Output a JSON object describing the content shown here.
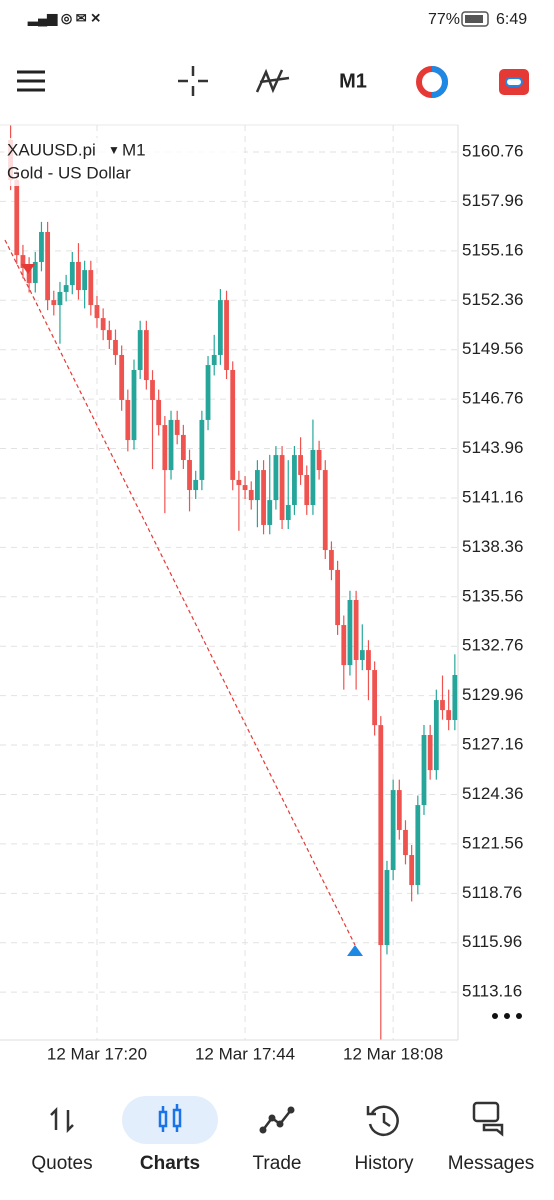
{
  "status_bar": {
    "battery": "77%",
    "time": "6:49"
  },
  "toolbar": {
    "timeframe": "M1"
  },
  "chart_data": {
    "type": "candlestick",
    "symbol": "XAUUSD.pi",
    "timeframe": "M1",
    "description": "Gold - US Dollar",
    "categories": [
      null,
      null,
      null,
      null,
      null,
      null,
      null,
      null,
      null,
      null,
      null,
      null,
      null,
      null,
      "12 Mar 17:20",
      null,
      null,
      null,
      null,
      null,
      null,
      null,
      null,
      null,
      null,
      null,
      null,
      null,
      null,
      null,
      null,
      null,
      null,
      null,
      null,
      null,
      null,
      null,
      "12 Mar 17:44",
      null,
      null,
      null,
      null,
      null,
      null,
      null,
      null,
      null,
      null,
      null,
      null,
      null,
      null,
      null,
      null,
      null,
      null,
      null,
      null,
      null,
      null,
      null,
      "12 Mar 18:08",
      null,
      null,
      null,
      null,
      null,
      null,
      null,
      null,
      null,
      null
    ],
    "open": [
      5161.44,
      5159.17,
      5154.92,
      5154.19,
      5153.34,
      5154.53,
      5156.23,
      5152.37,
      5152.09,
      5152.83,
      5153.22,
      5154.53,
      5152.94,
      5154.07,
      5152.09,
      5151.35,
      5150.67,
      5150.11,
      5149.26,
      5146.71,
      5144.44,
      5148.41,
      5150.67,
      5147.84,
      5146.71,
      5145.29,
      5142.74,
      5145.58,
      5144.73,
      5143.31,
      5141.61,
      5142.18,
      5145.58,
      5148.69,
      5149.26,
      5152.37,
      5148.41,
      5142.18,
      5141.89,
      5141.61,
      5141.04,
      5142.74,
      5139.63,
      5141.04,
      5143.59,
      5139.91,
      5140.76,
      5143.59,
      5142.46,
      5140.76,
      5143.88,
      5142.74,
      5138.21,
      5137.08,
      5133.96,
      5131.69,
      5135.38,
      5131.98,
      5132.54,
      5131.41,
      5128.29,
      5115.83,
      5120.08,
      5124.61,
      5122.35,
      5120.93,
      5119.23,
      5123.76,
      5127.73,
      5125.74,
      5129.71,
      5129.14,
      5128.58
    ],
    "high": [
      5162.29,
      5159.7,
      5155.5,
      5154.8,
      5155.1,
      5156.8,
      5156.8,
      5152.9,
      5153.4,
      5153.8,
      5155.1,
      5155.6,
      5154.6,
      5154.6,
      5152.6,
      5151.9,
      5151.2,
      5150.7,
      5149.8,
      5147.3,
      5149.0,
      5151.2,
      5151.2,
      5148.4,
      5147.3,
      5145.8,
      5146.1,
      5146.1,
      5145.3,
      5143.9,
      5142.7,
      5146.1,
      5149.2,
      5150.4,
      5153.0,
      5152.9,
      5148.9,
      5142.7,
      5142.4,
      5142.1,
      5143.3,
      5143.3,
      5143.6,
      5144.1,
      5144.1,
      5143.3,
      5144.1,
      5144.6,
      5143.0,
      5145.6,
      5144.4,
      5143.3,
      5138.7,
      5137.6,
      5134.5,
      5135.9,
      5135.9,
      5134.0,
      5133.1,
      5131.9,
      5128.8,
      5120.6,
      5125.2,
      5125.2,
      5122.9,
      5121.5,
      5124.3,
      5128.3,
      5128.3,
      5130.3,
      5131.1,
      5130.3,
      5132.3
    ],
    "low": [
      5158.6,
      5154.4,
      5153.6,
      5152.8,
      5152.8,
      5154.0,
      5151.8,
      5151.5,
      5149.9,
      5152.3,
      5152.7,
      5152.4,
      5151.9,
      5151.5,
      5150.8,
      5150.1,
      5149.6,
      5148.7,
      5146.1,
      5143.8,
      5143.9,
      5147.9,
      5147.3,
      5142.8,
      5144.7,
      5140.3,
      5142.2,
      5144.2,
      5142.8,
      5140.4,
      5141.1,
      5141.6,
      5145.0,
      5148.1,
      5148.7,
      5147.9,
      5141.6,
      5139.3,
      5141.1,
      5140.5,
      5139.5,
      5139.1,
      5139.1,
      5140.5,
      5139.4,
      5139.4,
      5140.2,
      5141.9,
      5140.2,
      5140.2,
      5142.2,
      5137.7,
      5136.5,
      5133.4,
      5130.3,
      5131.1,
      5130.3,
      5131.4,
      5129.7,
      5127.7,
      5110.45,
      5115.3,
      5119.5,
      5121.8,
      5120.4,
      5118.3,
      5118.7,
      5123.2,
      5125.2,
      5125.2,
      5128.6,
      5128.0,
      5128.0
    ],
    "close": [
      5159.17,
      5154.92,
      5154.19,
      5153.34,
      5154.53,
      5156.23,
      5152.37,
      5152.09,
      5152.83,
      5153.22,
      5154.53,
      5152.94,
      5154.07,
      5152.09,
      5151.35,
      5150.67,
      5150.11,
      5149.26,
      5146.71,
      5144.44,
      5148.41,
      5150.67,
      5147.84,
      5146.71,
      5145.29,
      5142.74,
      5145.58,
      5144.73,
      5143.31,
      5141.61,
      5142.18,
      5145.58,
      5148.69,
      5149.26,
      5152.37,
      5148.41,
      5142.18,
      5141.89,
      5141.61,
      5141.04,
      5142.74,
      5139.63,
      5141.04,
      5143.59,
      5139.91,
      5140.76,
      5143.59,
      5142.46,
      5140.76,
      5143.88,
      5142.74,
      5138.21,
      5137.08,
      5133.96,
      5131.69,
      5135.38,
      5131.98,
      5132.54,
      5131.41,
      5128.29,
      5115.83,
      5120.08,
      5124.61,
      5122.35,
      5120.93,
      5119.23,
      5123.76,
      5127.73,
      5125.74,
      5129.71,
      5129.14,
      5128.58,
      5131.13
    ],
    "up_color": "#26a69a",
    "down_color": "#ef5350",
    "ylim": [
      5110.45,
      5162.29
    ],
    "yticks": [
      5160.76,
      5157.96,
      5155.16,
      5152.36,
      5149.56,
      5146.76,
      5143.96,
      5141.16,
      5138.36,
      5135.56,
      5132.76,
      5129.96,
      5127.16,
      5124.36,
      5121.56,
      5118.76,
      5115.96,
      5113.16
    ],
    "grid": true
  },
  "nav": {
    "items": [
      "Quotes",
      "Charts",
      "Trade",
      "History",
      "Messages"
    ],
    "active": 1,
    "active_color": "#1a73e8"
  }
}
